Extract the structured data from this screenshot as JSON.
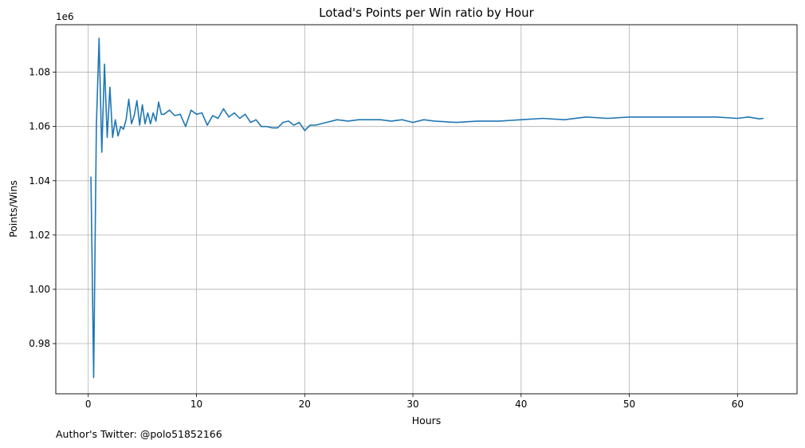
{
  "footer": {
    "text": "Author's Twitter: @polo51852166"
  },
  "chart_data": {
    "type": "line",
    "title": "Lotad's Points per Win ratio by Hour",
    "xlabel": "Hours",
    "ylabel": "Points/Wins",
    "y_offset_label": "1e6",
    "xlim": [
      -3,
      65.5
    ],
    "ylim": [
      0.9615,
      1.0975
    ],
    "xticks": [
      0,
      10,
      20,
      30,
      40,
      50,
      60
    ],
    "yticks": [
      0.98,
      1.0,
      1.02,
      1.04,
      1.06,
      1.08
    ],
    "ytick_labels": [
      "0.98",
      "1.00",
      "1.02",
      "1.04",
      "1.06",
      "1.08"
    ],
    "grid": true,
    "series_color": "#1f77b4",
    "series": [
      {
        "x": [
          0.25,
          0.5,
          0.75,
          1.0,
          1.25,
          1.5,
          1.75,
          2.0,
          2.25,
          2.5,
          2.75,
          3.0,
          3.25,
          3.5,
          3.75,
          4.0,
          4.25,
          4.5,
          4.75,
          5.0,
          5.25,
          5.5,
          5.75,
          6.0,
          6.25,
          6.5,
          6.75,
          7.0,
          7.5,
          8.0,
          8.5,
          9.0,
          9.5,
          10.0,
          10.5,
          11.0,
          11.5,
          12.0,
          12.5,
          13.0,
          13.5,
          14.0,
          14.5,
          15.0,
          15.5,
          16.0,
          16.5,
          17.0,
          17.5,
          18.0,
          18.5,
          19.0,
          19.5,
          20.0,
          20.5,
          21.0,
          22.0,
          23.0,
          24.0,
          25.0,
          26.0,
          27.0,
          28.0,
          29.0,
          30.0,
          31.0,
          32.0,
          34.0,
          36.0,
          38.0,
          40.0,
          42.0,
          44.0,
          46.0,
          48.0,
          50.0,
          52.0,
          54.0,
          56.0,
          58.0,
          60.0,
          61.0,
          62.0,
          62.4
        ],
        "y": [
          1.0415,
          0.9675,
          1.06,
          1.0925,
          1.0505,
          1.083,
          1.056,
          1.0745,
          1.056,
          1.0625,
          1.0565,
          1.06,
          1.059,
          1.0625,
          1.07,
          1.061,
          1.064,
          1.0695,
          1.0605,
          1.068,
          1.061,
          1.065,
          1.061,
          1.065,
          1.062,
          1.069,
          1.0645,
          1.0645,
          1.066,
          1.064,
          1.0645,
          1.06,
          1.066,
          1.0645,
          1.065,
          1.0605,
          1.064,
          1.063,
          1.0665,
          1.0635,
          1.065,
          1.063,
          1.0645,
          1.0615,
          1.0625,
          1.06,
          1.06,
          1.0595,
          1.0595,
          1.0615,
          1.062,
          1.0605,
          1.0615,
          1.0585,
          1.0605,
          1.0605,
          1.0615,
          1.0625,
          1.062,
          1.0625,
          1.0625,
          1.0625,
          1.062,
          1.0625,
          1.0615,
          1.0625,
          1.062,
          1.0615,
          1.062,
          1.062,
          1.0625,
          1.063,
          1.0625,
          1.0635,
          1.063,
          1.0635,
          1.0635,
          1.0635,
          1.0635,
          1.0635,
          1.063,
          1.0635,
          1.0628,
          1.063
        ]
      }
    ]
  }
}
